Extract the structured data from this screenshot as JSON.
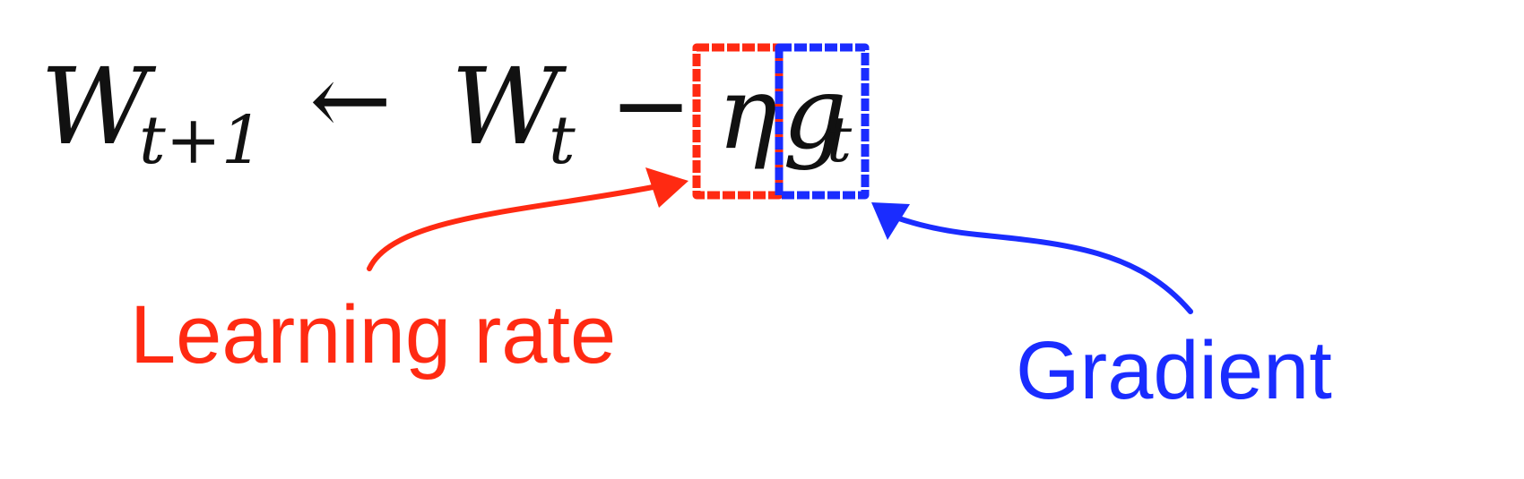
{
  "equation": {
    "lhs_symbol": "W",
    "lhs_subscript": "t+1",
    "arrow": "←",
    "rhs_symbol": "W",
    "rhs_subscript": "t",
    "minus": "−",
    "eta": "η",
    "grad_symbol": "g",
    "grad_subscript": "t"
  },
  "annotations": {
    "learning_rate": {
      "label": "Learning rate",
      "color": "#ff2a12"
    },
    "gradient": {
      "label": "Gradient",
      "color": "#1a2cff"
    }
  },
  "colors": {
    "text": "#111111",
    "background": "#ffffff"
  }
}
